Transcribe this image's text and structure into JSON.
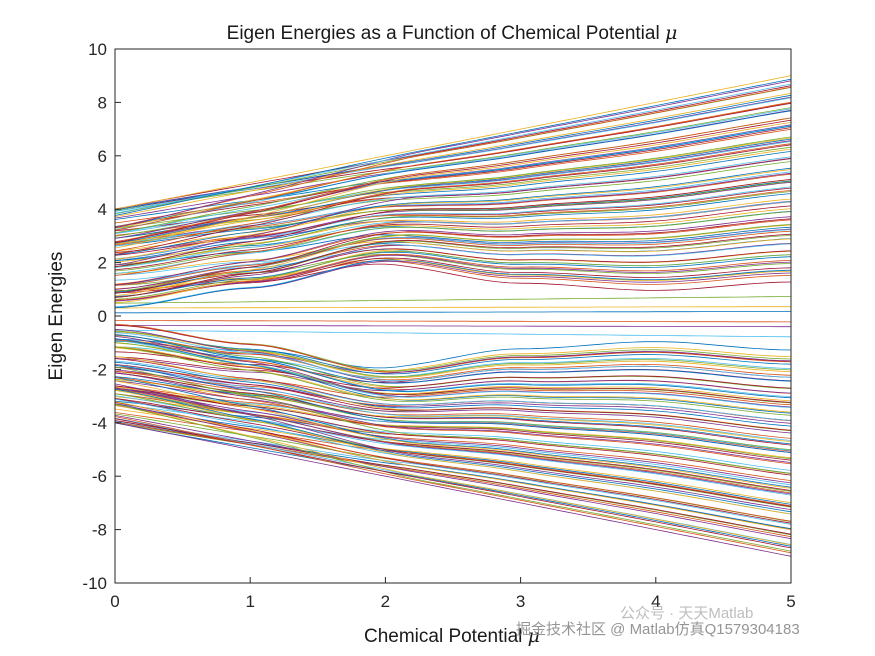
{
  "chart_data": {
    "type": "line",
    "title": "Eigen Energies as a Function of Chemical Potential",
    "title_symbol": "μ",
    "xlabel": "Chemical Potential",
    "xlabel_symbol": "μ",
    "ylabel": "Eigen Energies",
    "xlim": [
      0,
      5
    ],
    "ylim": [
      -10,
      10
    ],
    "xticks": [
      "0",
      "1",
      "2",
      "3",
      "4",
      "5"
    ],
    "yticks": [
      "10",
      "8",
      "6",
      "4",
      "2",
      "0",
      "-2",
      "-4",
      "-6",
      "-8",
      "-10"
    ],
    "grid": false,
    "series_count": 200,
    "band_summary": {
      "outer_band_at_mu_0": [
        -4,
        4
      ],
      "outer_band_at_mu_5": [
        -9,
        9
      ],
      "gap_edge": [
        {
          "x": 0,
          "y": 0.3
        },
        {
          "x": 1,
          "y": 0.9
        },
        {
          "x": 2,
          "y": 1.8
        },
        {
          "x": 3,
          "y": 1.1
        },
        {
          "x": 4,
          "y": 0.8
        },
        {
          "x": 5,
          "y": 1.1
        }
      ]
    },
    "colors": [
      "#0072BD",
      "#D95319",
      "#EDB120",
      "#7E2F8E",
      "#77AC30",
      "#4DBEEE",
      "#A2142F"
    ]
  },
  "watermark": {
    "text": "掘金技术社区 @ Matlab仿真Q1579304183",
    "faint_text": "公众号 · 天天Matlab"
  }
}
